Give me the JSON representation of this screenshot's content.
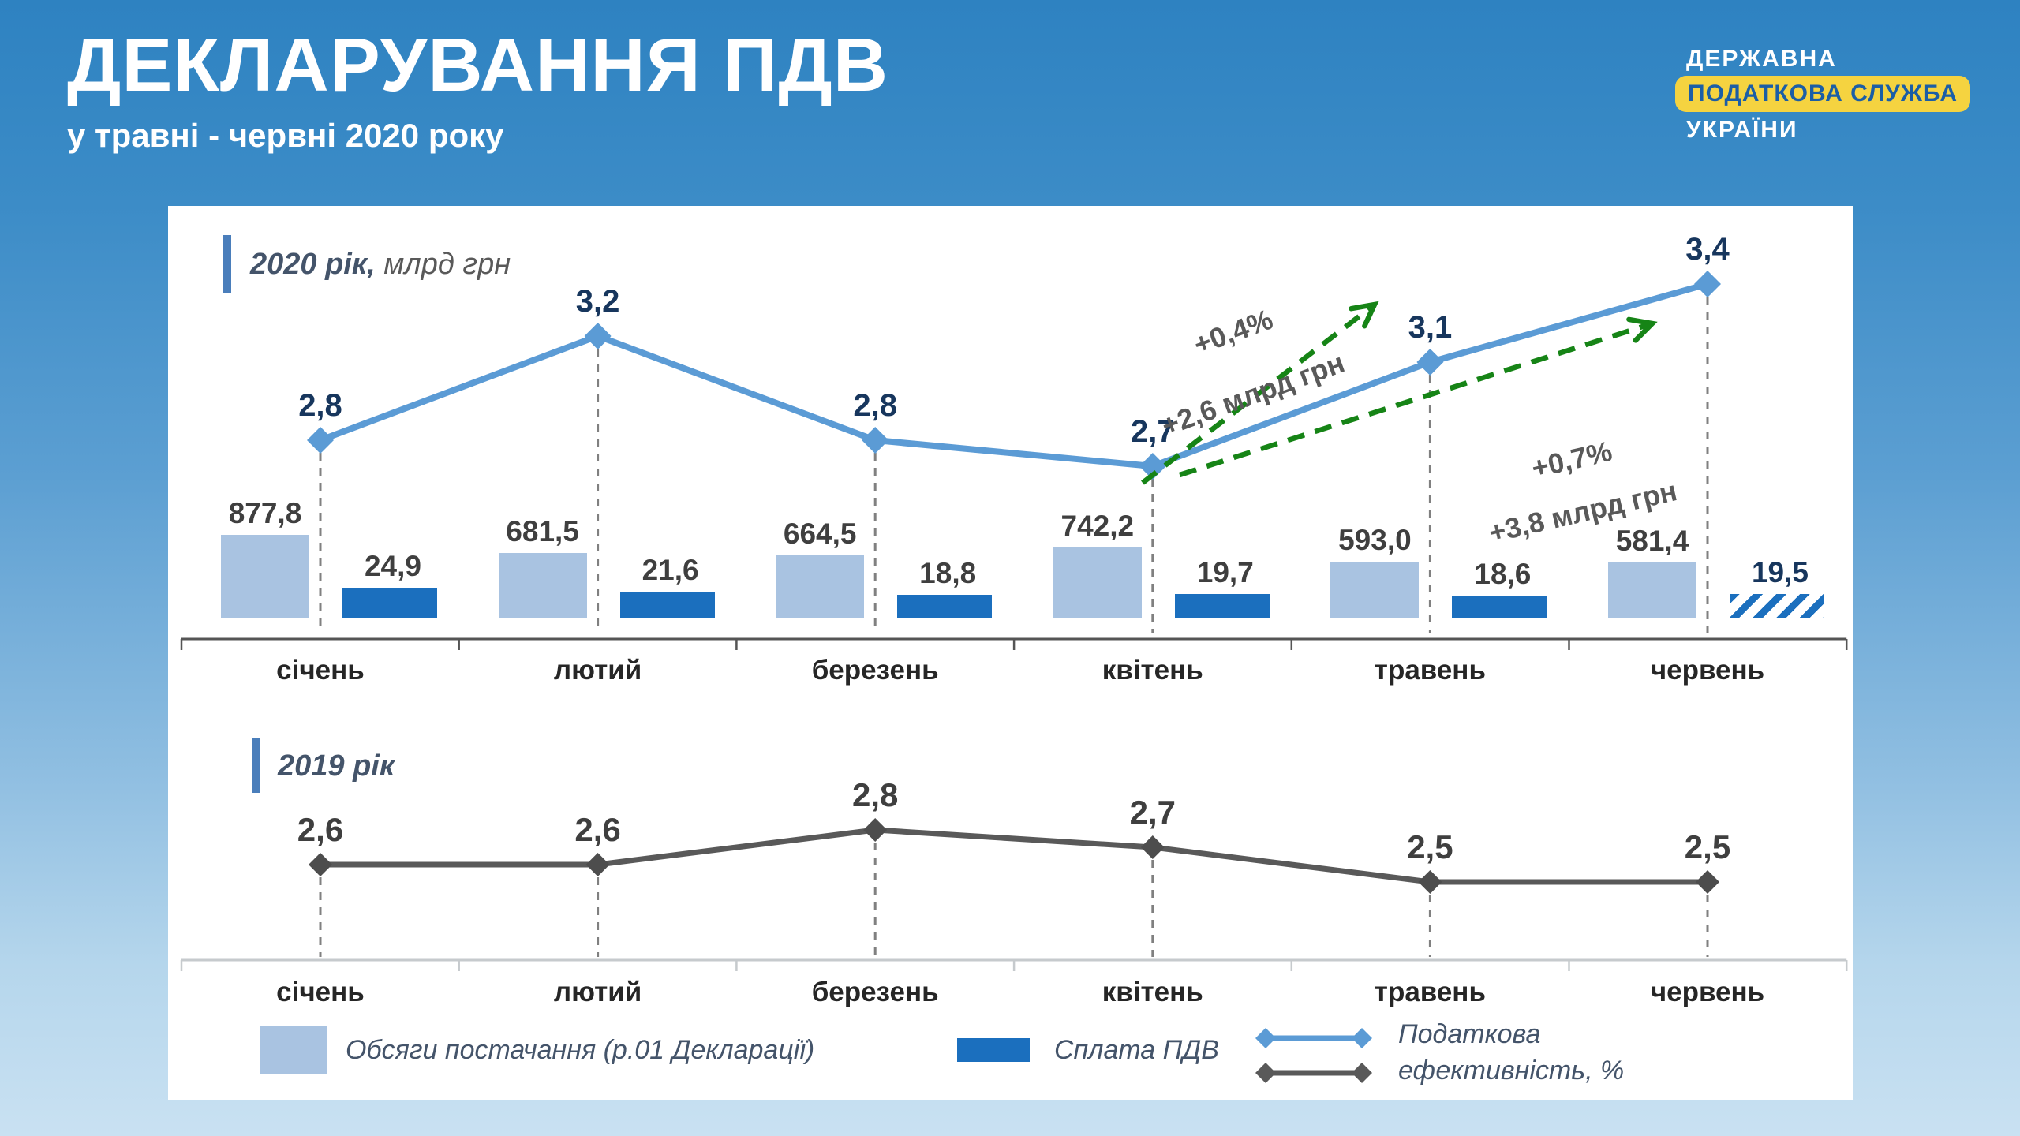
{
  "header": {
    "title": "ДЕКЛАРУВАННЯ ПДВ",
    "subtitle": "у травні - червні 2020 року"
  },
  "logo": {
    "line1": "ДЕРЖАВНА",
    "line2": "ПОДАТКОВА СЛУЖБА",
    "line3": "УКРАЇНИ"
  },
  "sections": {
    "s2020": {
      "year_label": "2020 рік,",
      "units_label": " млрд грн"
    },
    "s2019": {
      "year_label": "2019 рік",
      "units_label": ""
    }
  },
  "legend": {
    "supply_label": "Обсяги постачання (р.01 Декларації)",
    "payment_label": "Сплата ПДВ",
    "efficiency_line1": "Податкова",
    "efficiency_line2": "ефективність, %"
  },
  "colors": {
    "accent_bar": "#4A7EBB",
    "line_2020": "#5B9BD5",
    "line_2019": "#595959",
    "marker_2019": "#4D4D4D",
    "supply_bar": "#A9C3E1",
    "payment_bar": "#1B6FBE",
    "navy_label": "#17365D",
    "green_arrow": "#168416",
    "badge_yellow": "#F5D340",
    "badge_text": "#1B5EA6",
    "axis_dark": "#555555",
    "axis_light": "#C6CACD",
    "drop_line": "#808080",
    "gray_text": "#595959",
    "dark_text": "#3F3F3F",
    "month_text": "#262626",
    "header_slate": "#44546A"
  },
  "chart_data": [
    {
      "id": "chart-2020",
      "type": "combo",
      "title": "2020 рік, млрд грн",
      "categories": [
        "січень",
        "лютий",
        "березень",
        "квітень",
        "травень",
        "червень"
      ],
      "series": [
        {
          "name": "Обсяги постачання (р.01 Декларації)",
          "type": "bar",
          "color": "#A9C3E1",
          "values": [
            877.8,
            681.5,
            664.5,
            742.2,
            593.0,
            581.4
          ],
          "display": [
            "877,8",
            "681,5",
            "664,5",
            "742,2",
            "593,0",
            "581,4"
          ]
        },
        {
          "name": "Сплата ПДВ",
          "type": "bar",
          "color": "#1B6FBE",
          "values": [
            24.9,
            21.6,
            18.8,
            19.7,
            18.6,
            19.5
          ],
          "display": [
            "24,9",
            "21,6",
            "18,8",
            "19,7",
            "18,6",
            "19,5"
          ],
          "last_bar_hatched": true
        },
        {
          "name": "Податкова ефективність, %",
          "type": "line",
          "color": "#5B9BD5",
          "values": [
            2.8,
            3.2,
            2.8,
            2.7,
            3.1,
            3.4
          ],
          "display": [
            "2,8",
            "3,2",
            "2,8",
            "2,7",
            "3,1",
            "3,4"
          ]
        }
      ],
      "annotations": [
        {
          "percent": "+0,4%",
          "absolute": "+2,6 млрд грн"
        },
        {
          "percent": "+0,7%",
          "absolute": "+3,8 млрд грн"
        }
      ],
      "legend_position": "bottom",
      "grid": "dashed-vertical"
    },
    {
      "id": "chart-2019",
      "type": "line",
      "title": "2019 рік",
      "categories": [
        "січень",
        "лютий",
        "березень",
        "квітень",
        "травень",
        "червень"
      ],
      "series": [
        {
          "name": "Податкова ефективність, %",
          "type": "line",
          "color": "#595959",
          "values": [
            2.6,
            2.6,
            2.8,
            2.7,
            2.5,
            2.5
          ],
          "display": [
            "2,6",
            "2,6",
            "2,8",
            "2,7",
            "2,5",
            "2,5"
          ]
        }
      ],
      "legend_position": "bottom",
      "grid": "dashed-vertical"
    }
  ]
}
